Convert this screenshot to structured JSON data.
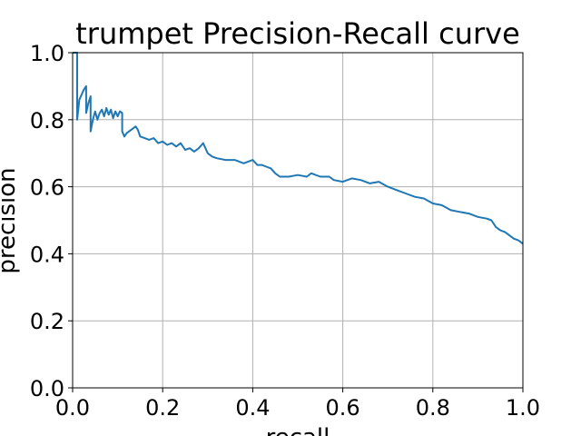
{
  "chart_data": {
    "type": "line",
    "title": "trumpet Precision-Recall curve",
    "xlabel": "recall",
    "ylabel": "precision",
    "xlim": [
      0.0,
      1.0
    ],
    "ylim": [
      0.0,
      1.0
    ],
    "xticks": [
      0.0,
      0.2,
      0.4,
      0.6,
      0.8,
      1.0
    ],
    "yticks": [
      0.0,
      0.2,
      0.4,
      0.6,
      0.8,
      1.0
    ],
    "xtick_labels": [
      "0.0",
      "0.2",
      "0.4",
      "0.6",
      "0.8",
      "1.0"
    ],
    "ytick_labels": [
      "0.0",
      "0.2",
      "0.4",
      "0.6",
      "0.8",
      "1.0"
    ],
    "grid": true,
    "legend": "none",
    "series_color": "#1f77b4",
    "series": [
      {
        "x": [
          0.0,
          0.01,
          0.01,
          0.015,
          0.02,
          0.025,
          0.03,
          0.03,
          0.035,
          0.04,
          0.04,
          0.045,
          0.05,
          0.055,
          0.06,
          0.065,
          0.07,
          0.075,
          0.08,
          0.085,
          0.09,
          0.095,
          0.1,
          0.105,
          0.11,
          0.11,
          0.115,
          0.12,
          0.13,
          0.14,
          0.145,
          0.15,
          0.16,
          0.17,
          0.18,
          0.19,
          0.2,
          0.21,
          0.22,
          0.23,
          0.24,
          0.25,
          0.26,
          0.27,
          0.28,
          0.29,
          0.3,
          0.31,
          0.32,
          0.34,
          0.36,
          0.38,
          0.39,
          0.4,
          0.41,
          0.42,
          0.43,
          0.44,
          0.45,
          0.46,
          0.48,
          0.5,
          0.52,
          0.53,
          0.55,
          0.57,
          0.58,
          0.6,
          0.62,
          0.64,
          0.66,
          0.68,
          0.7,
          0.72,
          0.74,
          0.76,
          0.78,
          0.8,
          0.82,
          0.84,
          0.86,
          0.88,
          0.9,
          0.92,
          0.93,
          0.94,
          0.95,
          0.96,
          0.97,
          0.98,
          0.99,
          1.0
        ],
        "y": [
          1.0,
          1.0,
          0.8,
          0.86,
          0.875,
          0.89,
          0.9,
          0.82,
          0.85,
          0.87,
          0.765,
          0.8,
          0.825,
          0.8,
          0.82,
          0.83,
          0.81,
          0.835,
          0.815,
          0.83,
          0.805,
          0.825,
          0.81,
          0.825,
          0.82,
          0.765,
          0.75,
          0.76,
          0.77,
          0.78,
          0.77,
          0.75,
          0.745,
          0.74,
          0.745,
          0.73,
          0.735,
          0.725,
          0.73,
          0.72,
          0.73,
          0.71,
          0.715,
          0.705,
          0.715,
          0.73,
          0.7,
          0.69,
          0.685,
          0.68,
          0.68,
          0.67,
          0.675,
          0.68,
          0.665,
          0.665,
          0.66,
          0.655,
          0.64,
          0.63,
          0.63,
          0.635,
          0.63,
          0.64,
          0.63,
          0.63,
          0.62,
          0.615,
          0.625,
          0.62,
          0.61,
          0.615,
          0.6,
          0.59,
          0.58,
          0.57,
          0.565,
          0.55,
          0.545,
          0.53,
          0.525,
          0.52,
          0.51,
          0.505,
          0.5,
          0.48,
          0.47,
          0.465,
          0.455,
          0.445,
          0.44,
          0.43
        ]
      }
    ]
  }
}
